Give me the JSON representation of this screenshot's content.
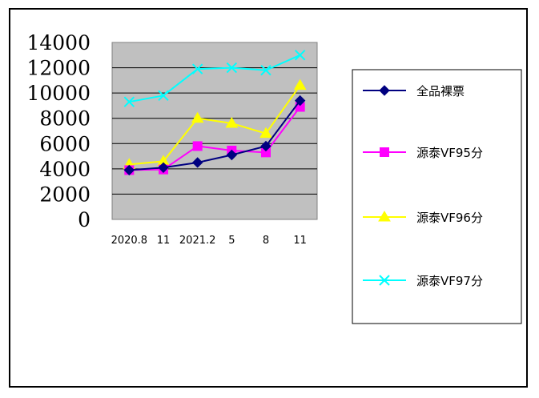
{
  "chart_data": {
    "type": "line",
    "categories": [
      "2020.8",
      "11",
      "2021.2",
      "5",
      "8",
      "11"
    ],
    "ylim": [
      0,
      14000
    ],
    "yticks": [
      0,
      2000,
      4000,
      6000,
      8000,
      10000,
      12000,
      14000
    ],
    "grid": true,
    "legend_position": "right",
    "plot_background": "#c0c0c0",
    "series": [
      {
        "name": "全品裸票",
        "color": "#000080",
        "marker": "diamond",
        "values": [
          3900,
          4100,
          4500,
          5100,
          5800,
          9400
        ]
      },
      {
        "name": "源泰VF95分",
        "color": "#ff00ff",
        "marker": "square",
        "values": [
          3900,
          3950,
          5800,
          5450,
          5300,
          8900
        ]
      },
      {
        "name": "源泰VF96分",
        "color": "#ffff00",
        "marker": "triangle",
        "values": [
          4350,
          4600,
          8000,
          7600,
          6800,
          10600
        ]
      },
      {
        "name": "源泰VF97分",
        "color": "#00ffff",
        "marker": "x",
        "values": [
          9300,
          9800,
          11900,
          12000,
          11800,
          13000
        ]
      }
    ]
  }
}
